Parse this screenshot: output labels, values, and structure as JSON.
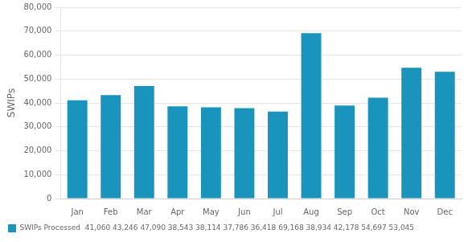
{
  "chart_data": {
    "type": "bar",
    "categories": [
      "Jan",
      "Feb",
      "Mar",
      "Apr",
      "May",
      "Jun",
      "Jul",
      "Aug",
      "Sep",
      "Oct",
      "Nov",
      "Dec"
    ],
    "series": [
      {
        "name": "SWIPs Processed  41,060 43,246 47,090 38,543 38,114 37,786 36,418 69,168 38,934 42,178 54,697 53,045",
        "color": "#1a94bc",
        "values": [
          41060,
          43246,
          47090,
          38543,
          38114,
          37786,
          36418,
          69168,
          38934,
          42178,
          54697,
          53045
        ]
      }
    ],
    "ylabel": "SWIPs",
    "ylim": [
      0,
      80000
    ],
    "yticks": [
      0,
      {
        "value": 10000,
        "label": "10,000"
      },
      {
        "value": 20000,
        "label": "20,000"
      },
      {
        "value": 30000,
        "label": "30,000"
      },
      {
        "value": 40000,
        "label": "40,000"
      },
      {
        "value": 50000,
        "label": "50,000"
      },
      {
        "value": 60000,
        "label": "60,000"
      },
      {
        "value": 70000,
        "label": "70,000"
      },
      {
        "value": 80000,
        "label": "80,000"
      }
    ],
    "grid": true,
    "legend": "bottom"
  }
}
